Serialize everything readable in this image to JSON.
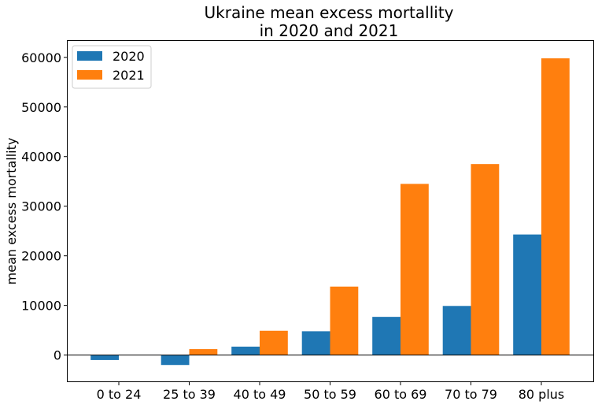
{
  "chart_data": {
    "type": "bar",
    "title_lines": [
      "Ukraine mean excess mortallity",
      "in 2020 and 2021"
    ],
    "ylabel": "mean excess mortallity",
    "xlabel": "",
    "categories": [
      "0 to 24",
      "25 to 39",
      "40 to 49",
      "50 to 59",
      "60 to 69",
      "70 to 79",
      "80 plus"
    ],
    "series": [
      {
        "name": "2020",
        "color": "#1f77b4",
        "values": [
          -1000,
          -2000,
          1700,
          4800,
          7700,
          9900,
          24300
        ]
      },
      {
        "name": "2021",
        "color": "#ff7f0e",
        "values": [
          0,
          1200,
          4900,
          13800,
          34500,
          38500,
          59800
        ]
      }
    ],
    "ylim": [
      -5300,
      63300
    ],
    "yticks": [
      0,
      10000,
      20000,
      30000,
      40000,
      50000,
      60000
    ],
    "zero_line": true,
    "grid": false,
    "legend": "top-left"
  }
}
